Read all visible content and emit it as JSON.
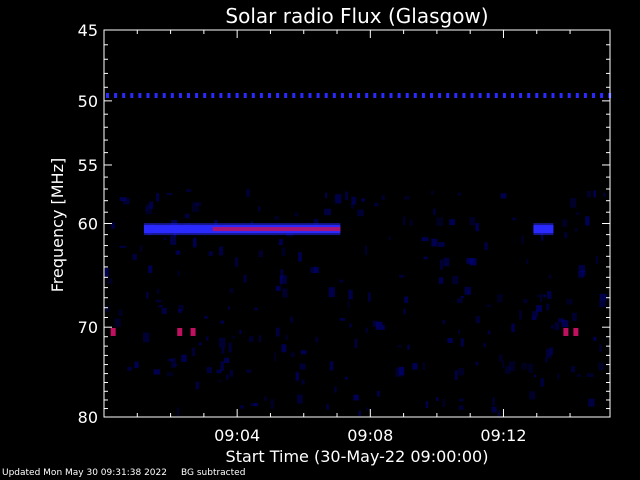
{
  "footer": {
    "updated": "Updated Mon May 30 09:31:38 2022",
    "note": "BG subtracted"
  },
  "chart_data": {
    "type": "heatmap",
    "title": "Solar radio Flux (Glasgow)",
    "xlabel": "Start Time (30-May-22 09:00:00)",
    "ylabel": "Frequency [MHz]",
    "xlim": [
      0,
      15.2
    ],
    "ylim": [
      45,
      80
    ],
    "x_ticks": [
      {
        "value": 4,
        "label": "09:04"
      },
      {
        "value": 8,
        "label": "09:08"
      },
      {
        "value": 12,
        "label": "09:12"
      }
    ],
    "y_ticks": [
      {
        "value": 45,
        "label": "45"
      },
      {
        "value": 50,
        "label": "50"
      },
      {
        "value": 55,
        "label": "55"
      },
      {
        "value": 60,
        "label": "60"
      },
      {
        "value": 70,
        "label": "70"
      },
      {
        "value": 80,
        "label": "80"
      }
    ],
    "features": [
      {
        "name": "interference line",
        "freq_mhz": 49.6,
        "start_min": 0,
        "end_min": 15.2,
        "intensity": "medium",
        "style": "dashed"
      },
      {
        "name": "band",
        "freq_mhz": 60.5,
        "start_min": 1.2,
        "end_min": 7.1,
        "intensity": "high"
      },
      {
        "name": "band",
        "freq_mhz": 60.5,
        "start_min": 12.9,
        "end_min": 13.5,
        "intensity": "medium"
      },
      {
        "name": "spot",
        "freq_mhz": 70.5,
        "start_min": 0.2,
        "end_min": 0.35,
        "intensity": "high"
      },
      {
        "name": "spot",
        "freq_mhz": 70.5,
        "start_min": 2.2,
        "end_min": 2.35,
        "intensity": "high"
      },
      {
        "name": "spot",
        "freq_mhz": 70.5,
        "start_min": 2.6,
        "end_min": 2.75,
        "intensity": "high"
      },
      {
        "name": "spot",
        "freq_mhz": 70.5,
        "start_min": 13.8,
        "end_min": 13.95,
        "intensity": "high"
      },
      {
        "name": "spot",
        "freq_mhz": 70.5,
        "start_min": 14.1,
        "end_min": 14.25,
        "intensity": "high"
      }
    ],
    "colors": {
      "low": "#00007a",
      "medium": "#2a2aff",
      "high": "#c01060",
      "axes": "#ffffff",
      "background": "#000000"
    }
  }
}
